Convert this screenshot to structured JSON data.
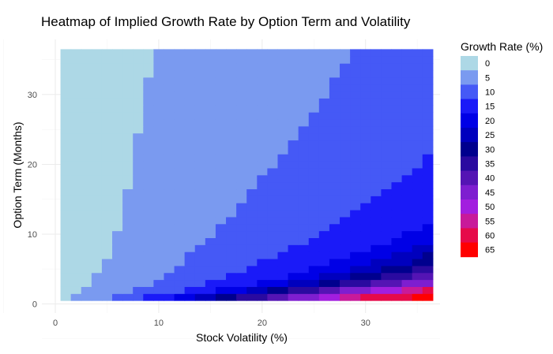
{
  "chart_data": {
    "type": "heatmap",
    "title": "Heatmap of Implied Growth Rate by Option Term and Volatility",
    "xlabel": "Stock Volatility (%)",
    "ylabel": "Option Term (Months)",
    "xlim": [
      -1.3,
      37.2
    ],
    "ylim": [
      -1.3,
      37.9
    ],
    "x_ticks": [
      0,
      10,
      20,
      30
    ],
    "y_ticks": [
      0,
      10,
      20,
      30
    ],
    "x_values_range": [
      1,
      36
    ],
    "y_values_range": [
      1,
      36
    ],
    "legend": {
      "title": "Growth Rate (%)",
      "position": "right",
      "bins": [
        {
          "label": "0",
          "color": "#ADD8E6"
        },
        {
          "label": "5",
          "color": "#7A9AF0"
        },
        {
          "label": "10",
          "color": "#4559F6"
        },
        {
          "label": "15",
          "color": "#1A1AF8"
        },
        {
          "label": "20",
          "color": "#0000E6"
        },
        {
          "label": "25",
          "color": "#0000BE"
        },
        {
          "label": "30",
          "color": "#00008E"
        },
        {
          "label": "35",
          "color": "#2A0AA0"
        },
        {
          "label": "40",
          "color": "#5414B4"
        },
        {
          "label": "45",
          "color": "#7E1ED0"
        },
        {
          "label": "50",
          "color": "#A21EDF"
        },
        {
          "label": "55",
          "color": "#C81A9A"
        },
        {
          "label": "60",
          "color": "#E60A4A"
        },
        {
          "label": "65",
          "color": "#FF0000"
        }
      ]
    },
    "boundaries_description": "Growth-rate band boundaries: for each band edge, the volatility (%) at which the band starts, listed by option term (months 1-36) as piecewise breakpoints [term, volatility].",
    "band_edges": [
      {
        "from_bin": "0",
        "to_bin": "5",
        "points": [
          [
            1,
            1.5
          ],
          [
            2,
            2.5
          ],
          [
            3,
            3.5
          ],
          [
            4,
            3.5
          ],
          [
            5,
            4.5
          ],
          [
            6,
            4.5
          ],
          [
            7,
            5.5
          ],
          [
            8,
            5.5
          ],
          [
            9,
            5.5
          ],
          [
            10,
            5.5
          ],
          [
            11,
            6.5
          ],
          [
            12,
            6.5
          ],
          [
            13,
            6.5
          ],
          [
            14,
            6.5
          ],
          [
            15,
            6.5
          ],
          [
            16,
            6.5
          ],
          [
            17,
            7.5
          ],
          [
            18,
            7.5
          ],
          [
            19,
            7.5
          ],
          [
            20,
            7.5
          ],
          [
            21,
            7.5
          ],
          [
            22,
            7.5
          ],
          [
            23,
            7.5
          ],
          [
            24,
            7.5
          ],
          [
            25,
            8.5
          ],
          [
            26,
            8.5
          ],
          [
            27,
            8.5
          ],
          [
            28,
            8.5
          ],
          [
            29,
            8.5
          ],
          [
            30,
            8.5
          ],
          [
            31,
            8.5
          ],
          [
            32,
            8.5
          ],
          [
            33,
            9.5
          ],
          [
            34,
            9.5
          ],
          [
            35,
            9.5
          ],
          [
            36,
            9.5
          ]
        ]
      },
      {
        "from_bin": "5",
        "to_bin": "10",
        "points": [
          [
            1,
            5.5
          ],
          [
            2,
            7.5
          ],
          [
            3,
            9.5
          ],
          [
            4,
            10.5
          ],
          [
            5,
            11.5
          ],
          [
            6,
            12.5
          ],
          [
            7,
            12.5
          ],
          [
            8,
            13.5
          ],
          [
            9,
            14.5
          ],
          [
            10,
            15.5
          ],
          [
            11,
            15.5
          ],
          [
            12,
            16.5
          ],
          [
            13,
            17.5
          ],
          [
            14,
            17.5
          ],
          [
            15,
            18.5
          ],
          [
            16,
            18.5
          ],
          [
            17,
            19.5
          ],
          [
            18,
            19.5
          ],
          [
            19,
            20.5
          ],
          [
            20,
            21.5
          ],
          [
            21,
            21.5
          ],
          [
            22,
            22.5
          ],
          [
            23,
            22.5
          ],
          [
            24,
            23.5
          ],
          [
            25,
            23.5
          ],
          [
            26,
            24.5
          ],
          [
            27,
            24.5
          ],
          [
            28,
            25.5
          ],
          [
            29,
            25.5
          ],
          [
            30,
            26.5
          ],
          [
            31,
            26.5
          ],
          [
            32,
            26.5
          ],
          [
            33,
            27.5
          ],
          [
            34,
            27.5
          ],
          [
            35,
            28.5
          ],
          [
            36,
            28.5
          ]
        ]
      },
      {
        "from_bin": "10",
        "to_bin": "15",
        "points": [
          [
            1,
            8.5
          ],
          [
            2,
            12.5
          ],
          [
            3,
            14.5
          ],
          [
            4,
            16.5
          ],
          [
            5,
            18.5
          ],
          [
            6,
            19.5
          ],
          [
            7,
            21.5
          ],
          [
            8,
            22.5
          ],
          [
            9,
            24.5
          ],
          [
            10,
            25.5
          ],
          [
            11,
            26.5
          ],
          [
            12,
            27.5
          ],
          [
            13,
            28.5
          ],
          [
            14,
            29.5
          ],
          [
            15,
            30.5
          ],
          [
            16,
            31.5
          ],
          [
            17,
            32.5
          ],
          [
            18,
            33.5
          ],
          [
            19,
            34.5
          ],
          [
            20,
            35.5
          ],
          [
            21,
            35.5
          ],
          [
            22,
            37.5
          ]
        ]
      },
      {
        "from_bin": "15",
        "to_bin": "20",
        "points": [
          [
            1,
            11.5
          ],
          [
            2,
            15.5
          ],
          [
            3,
            19.5
          ],
          [
            4,
            22.5
          ],
          [
            5,
            24.5
          ],
          [
            6,
            26.5
          ],
          [
            7,
            28.5
          ],
          [
            8,
            30.5
          ],
          [
            9,
            32.5
          ],
          [
            10,
            33.5
          ],
          [
            11,
            35.5
          ],
          [
            12,
            37.5
          ]
        ]
      },
      {
        "from_bin": "20",
        "to_bin": "25",
        "points": [
          [
            1,
            13.5
          ],
          [
            2,
            18.5
          ],
          [
            3,
            22.5
          ],
          [
            4,
            25.5
          ],
          [
            5,
            28.5
          ],
          [
            6,
            30.5
          ],
          [
            7,
            32.5
          ],
          [
            8,
            34.5
          ],
          [
            9,
            36.5
          ]
        ]
      },
      {
        "from_bin": "25",
        "to_bin": "30",
        "points": [
          [
            1,
            15.5
          ],
          [
            2,
            20.5
          ],
          [
            3,
            25.5
          ],
          [
            4,
            28.5
          ],
          [
            5,
            31.5
          ],
          [
            6,
            34.5
          ],
          [
            7,
            35.5
          ],
          [
            8,
            37.5
          ]
        ]
      },
      {
        "from_bin": "30",
        "to_bin": "35",
        "points": [
          [
            1,
            17.5
          ],
          [
            2,
            22.5
          ],
          [
            3,
            27.5
          ],
          [
            4,
            31.5
          ],
          [
            5,
            34.5
          ],
          [
            6,
            37.5
          ]
        ]
      },
      {
        "from_bin": "35",
        "to_bin": "40",
        "points": [
          [
            1,
            20.5
          ],
          [
            2,
            25.5
          ],
          [
            3,
            30.5
          ],
          [
            4,
            34.5
          ],
          [
            5,
            37.5
          ]
        ]
      },
      {
        "from_bin": "40",
        "to_bin": "45",
        "points": [
          [
            1,
            22.5
          ],
          [
            2,
            27.5
          ],
          [
            3,
            33.5
          ],
          [
            4,
            37.5
          ]
        ]
      },
      {
        "from_bin": "45",
        "to_bin": "50",
        "points": [
          [
            1,
            25.5
          ],
          [
            2,
            30.5
          ],
          [
            3,
            36.5
          ]
        ]
      },
      {
        "from_bin": "50",
        "to_bin": "55",
        "points": [
          [
            1,
            27.5
          ],
          [
            2,
            33.5
          ],
          [
            3,
            37.5
          ]
        ]
      },
      {
        "from_bin": "55",
        "to_bin": "60",
        "points": [
          [
            1,
            29.5
          ],
          [
            2,
            35.5
          ]
        ]
      },
      {
        "from_bin": "60",
        "to_bin": "65",
        "points": [
          [
            1,
            34.5
          ],
          [
            2,
            37.5
          ]
        ]
      }
    ]
  }
}
